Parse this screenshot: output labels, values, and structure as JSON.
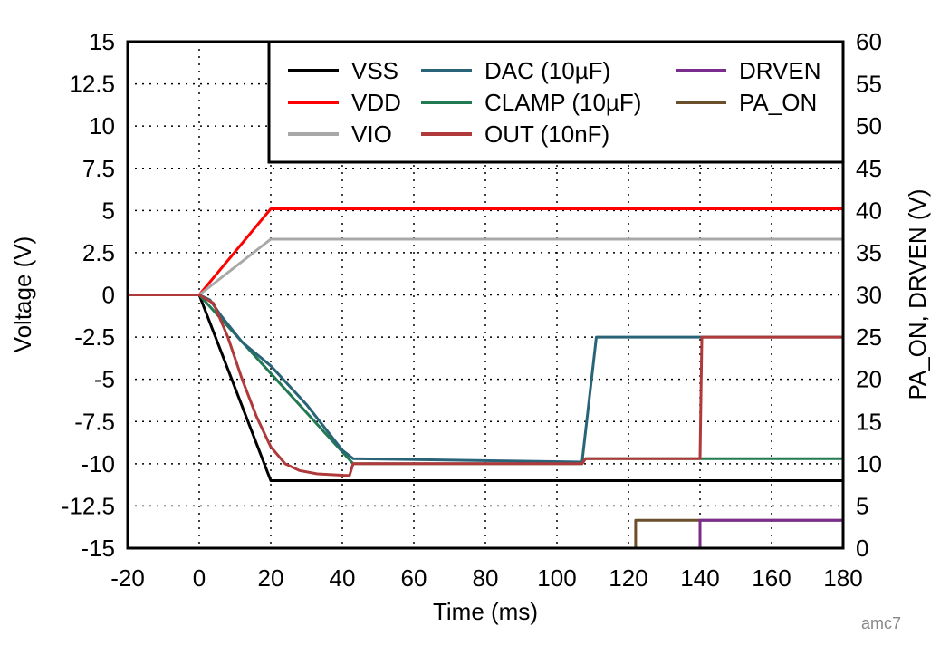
{
  "chart_data": {
    "type": "line",
    "xlabel": "Time (ms)",
    "ylabel": "Voltage (V)",
    "y2label": "PA_ON, DRVEN (V)",
    "xlim": [
      -20,
      180
    ],
    "ylim": [
      -15,
      15
    ],
    "y2lim": [
      0,
      60
    ],
    "x_ticks": [
      -20,
      0,
      20,
      40,
      60,
      80,
      100,
      120,
      140,
      160,
      180
    ],
    "y_ticks": [
      15,
      12.5,
      10,
      7.5,
      5,
      2.5,
      0,
      -2.5,
      -5,
      -7.5,
      -10,
      -12.5,
      -15
    ],
    "y2_ticks": [
      60,
      55,
      50,
      45,
      40,
      35,
      30,
      25,
      20,
      15,
      10,
      5,
      0
    ],
    "legend": {
      "location": "top-right",
      "columns": 3
    },
    "series": [
      {
        "name": "VSS",
        "color": "#000000",
        "axis": "left",
        "x": [
          -20,
          0,
          20,
          180
        ],
        "y": [
          0,
          0,
          -11,
          -11
        ]
      },
      {
        "name": "VDD",
        "color": "#ff0000",
        "axis": "left",
        "x": [
          -20,
          0,
          20,
          180
        ],
        "y": [
          0,
          0,
          5.1,
          5.1
        ]
      },
      {
        "name": "VIO",
        "color": "#a8a8a8",
        "axis": "left",
        "x": [
          -20,
          0,
          20,
          180
        ],
        "y": [
          0,
          0,
          3.3,
          3.3
        ]
      },
      {
        "name": "DAC (10µF)",
        "color": "#2a6478",
        "axis": "left",
        "x": [
          -20,
          0,
          3,
          6,
          12,
          20,
          30,
          40,
          43,
          107,
          111,
          180
        ],
        "y": [
          0,
          0,
          -0.3,
          -1.2,
          -2.8,
          -4.2,
          -6.5,
          -9.2,
          -9.7,
          -9.9,
          -2.5,
          -2.5
        ]
      },
      {
        "name": "CLAMP (10µF)",
        "color": "#227a52",
        "axis": "left",
        "x": [
          -20,
          0,
          43,
          107,
          108,
          180
        ],
        "y": [
          0,
          0,
          -10,
          -10,
          -9.7,
          -9.7
        ]
      },
      {
        "name": "OUT (10nF)",
        "color": "#b03a3a",
        "axis": "left",
        "x": [
          -20,
          0,
          4,
          8,
          12,
          16,
          20,
          24,
          28,
          33,
          42,
          43,
          107,
          108,
          140,
          140.5,
          180
        ],
        "y": [
          0,
          0,
          -0.5,
          -2.5,
          -5.0,
          -7.2,
          -9.0,
          -10.0,
          -10.4,
          -10.6,
          -10.7,
          -10.0,
          -10.0,
          -9.7,
          -9.7,
          -2.5,
          -2.5
        ]
      },
      {
        "name": "DRVEN",
        "color": "#7b2d8e",
        "axis": "right",
        "x": [
          -20,
          140,
          140,
          180
        ],
        "y": [
          0,
          0,
          3.3,
          3.3
        ]
      },
      {
        "name": "PA_ON",
        "color": "#6b4e2a",
        "axis": "right",
        "x": [
          -20,
          122,
          122,
          180
        ],
        "y": [
          0,
          0,
          3.3,
          3.3
        ]
      }
    ],
    "watermark": "amc7"
  }
}
